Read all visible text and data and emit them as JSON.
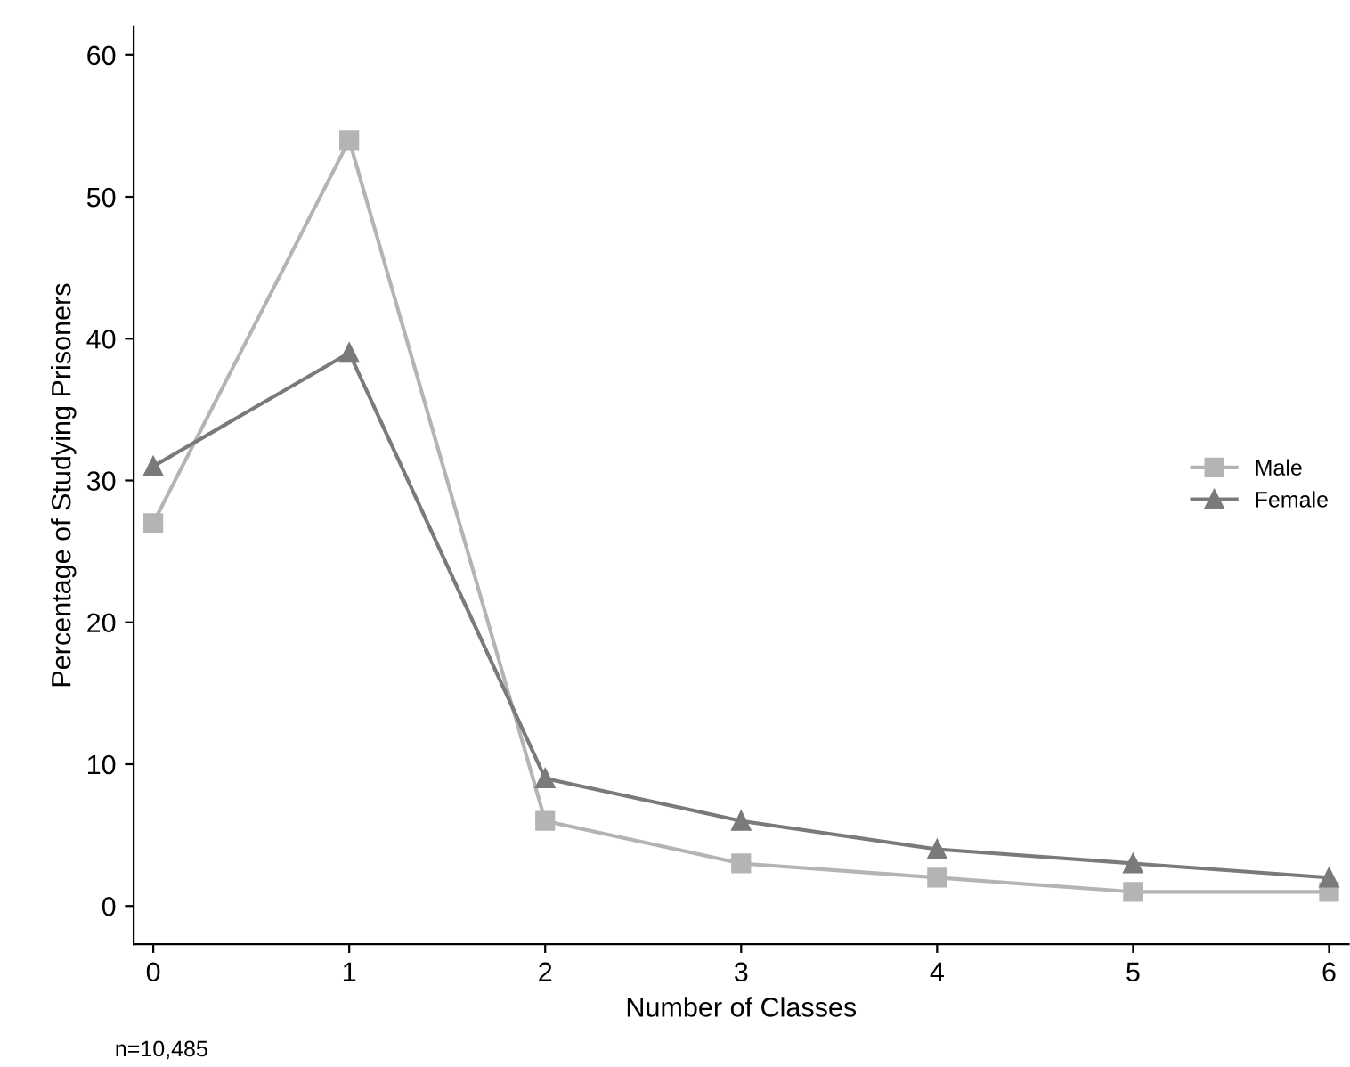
{
  "chart_data": {
    "type": "line",
    "xlabel": "Number of Classes",
    "ylabel": "Percentage of Studying Prisoners",
    "x": [
      0,
      1,
      2,
      3,
      4,
      5,
      6
    ],
    "series": [
      {
        "name": "Male",
        "color": "#b4b4b4",
        "marker": "square",
        "values": [
          27,
          54,
          6,
          3,
          2,
          1,
          1
        ]
      },
      {
        "name": "Female",
        "color": "#7a7a7a",
        "marker": "triangle",
        "values": [
          31,
          39,
          9,
          6,
          4,
          3,
          2
        ]
      }
    ],
    "xlim": [
      -0.1,
      6.1
    ],
    "ylim": [
      -2.7,
      62
    ],
    "xticks": [
      0,
      1,
      2,
      3,
      4,
      5,
      6
    ],
    "yticks": [
      0,
      10,
      20,
      30,
      40,
      50,
      60
    ],
    "grid": false,
    "legend": "right",
    "line_style": "solid",
    "annotations": [
      "n=10,485"
    ]
  }
}
